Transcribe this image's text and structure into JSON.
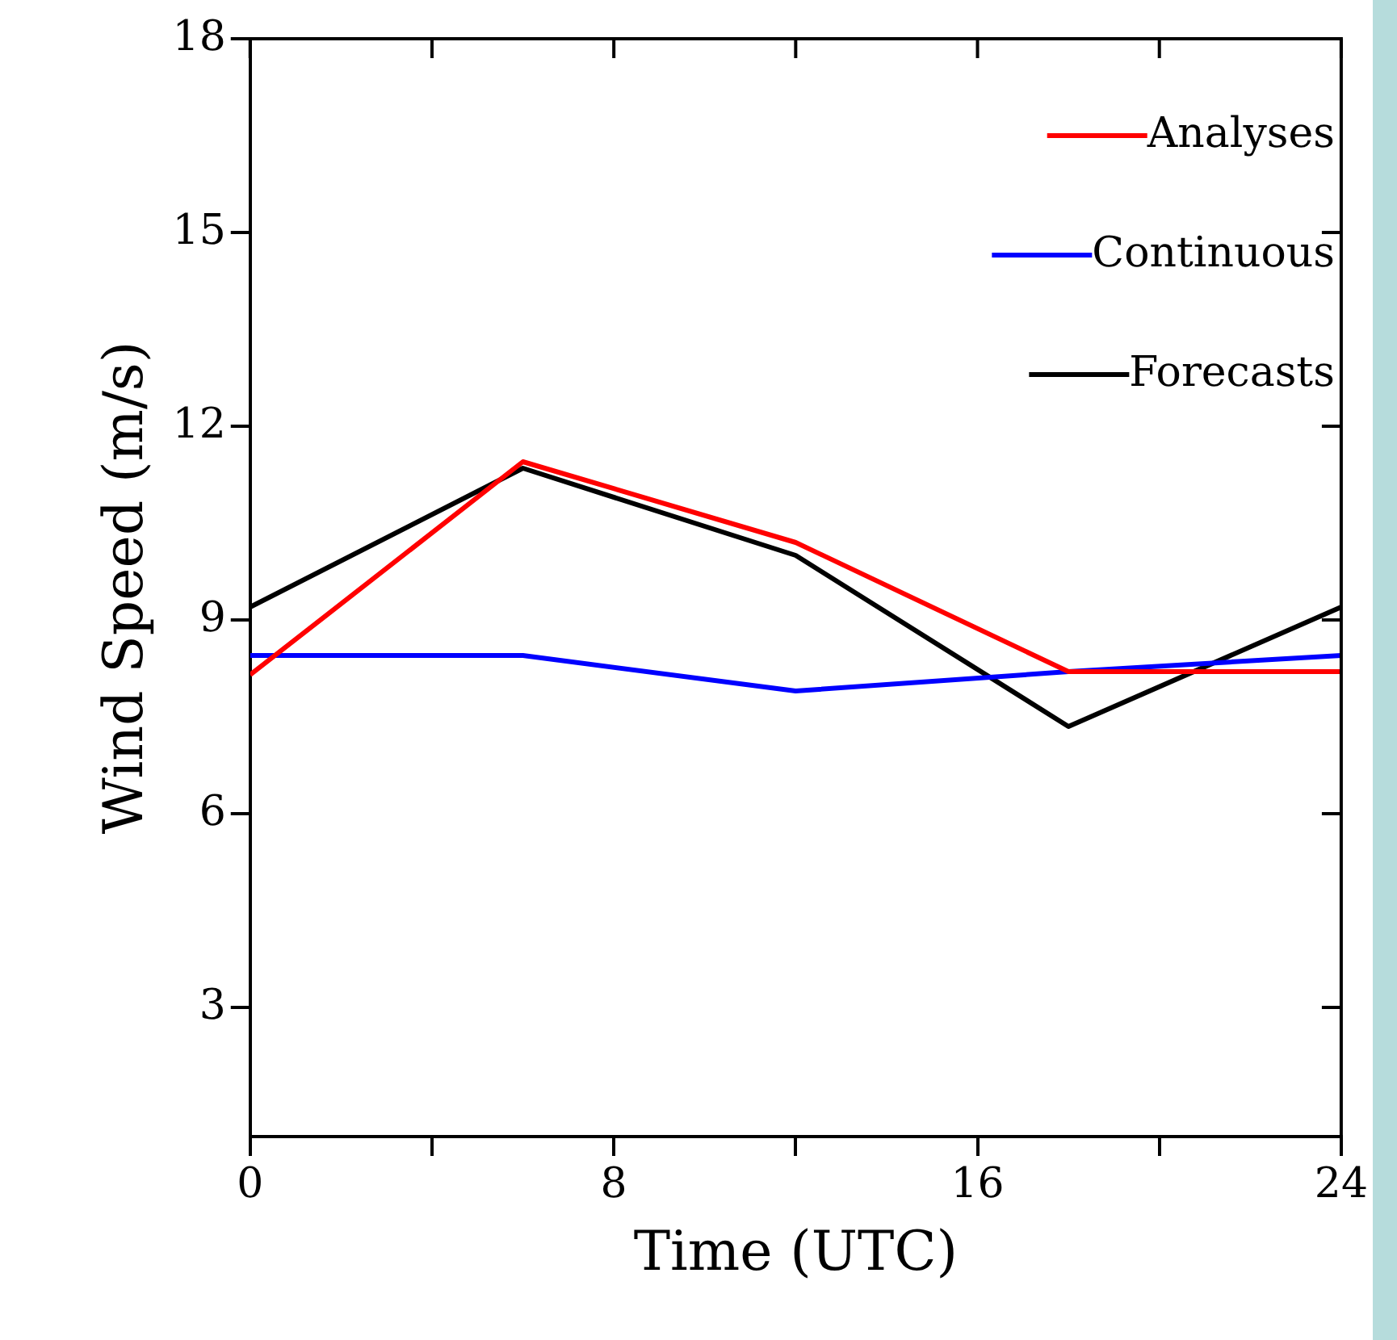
{
  "chart_data": {
    "type": "line",
    "xlabel": "Time (UTC)",
    "ylabel": "Wind Speed (m/s)",
    "x": [
      0,
      6,
      12,
      18,
      24
    ],
    "series": [
      {
        "name": "Analyses",
        "color": "#ff0000",
        "values": [
          8.15,
          11.45,
          10.2,
          8.2,
          8.2
        ]
      },
      {
        "name": "Continuous",
        "color": "#0000ff",
        "values": [
          8.45,
          8.45,
          7.9,
          8.2,
          8.45
        ]
      },
      {
        "name": "Forecasts",
        "color": "#000000",
        "values": [
          9.2,
          11.35,
          10.0,
          7.35,
          9.2
        ]
      }
    ],
    "xlim": [
      0,
      24
    ],
    "xticks": [
      0,
      {
        "value": 4,
        "label": null
      },
      8,
      {
        "value": 12,
        "label": null
      },
      16,
      {
        "value": 20,
        "label": null
      },
      24
    ],
    "ylim": [
      1,
      18
    ],
    "yticks": [
      3,
      6,
      9,
      12,
      15,
      18
    ],
    "grid": false,
    "legend": "top right",
    "marker": "none",
    "line_style": "solid"
  }
}
